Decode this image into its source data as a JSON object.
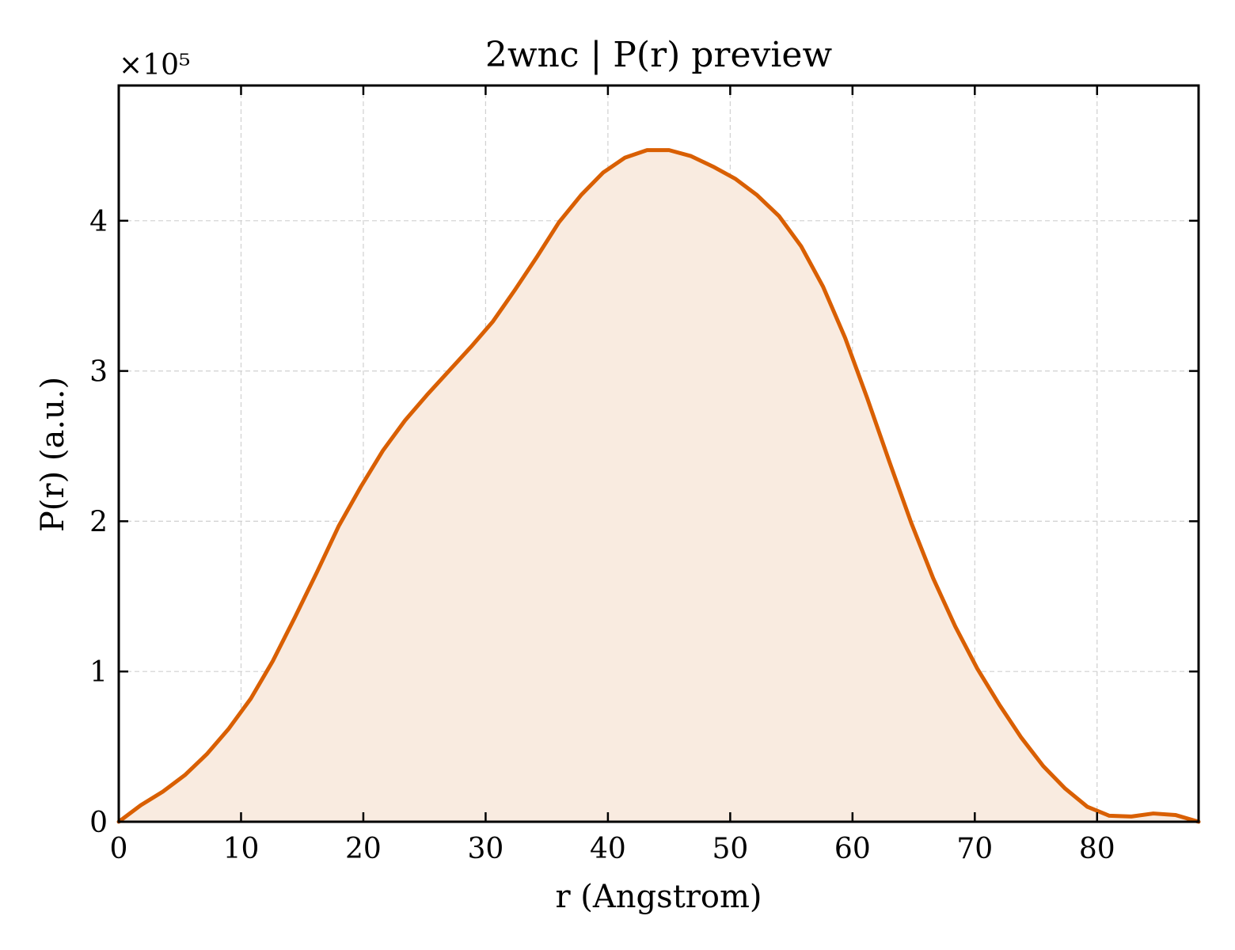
{
  "chart_data": {
    "type": "area",
    "title": "2wnc | P(r) preview",
    "xlabel": "r (Angstrom)",
    "ylabel": "P(r) (a.u.)",
    "y_offset_label": "×10⁵",
    "xlim": [
      0,
      88.3
    ],
    "ylim": [
      0,
      4.9
    ],
    "xticks": [
      0,
      10,
      20,
      30,
      40,
      50,
      60,
      70,
      80
    ],
    "yticks": [
      0,
      1,
      2,
      3,
      4
    ],
    "grid": true,
    "line_color": "#d95f02",
    "fill_color": "#f9ebe0",
    "series": [
      {
        "x": [
          0,
          1.8,
          3.6,
          5.4,
          7.2,
          9.0,
          10.8,
          12.6,
          14.4,
          16.2,
          18.0,
          19.8,
          21.6,
          23.4,
          25.2,
          27.0,
          28.8,
          30.6,
          32.4,
          34.2,
          36.0,
          37.8,
          39.6,
          41.4,
          43.2,
          45.0,
          46.8,
          48.6,
          50.4,
          52.2,
          54.0,
          55.8,
          57.6,
          59.4,
          61.2,
          63.0,
          64.8,
          66.6,
          68.4,
          70.2,
          72.0,
          73.8,
          75.6,
          77.4,
          79.2,
          81.0,
          82.8,
          84.6,
          86.4,
          88.3
        ],
        "y": [
          0,
          0.11,
          0.2,
          0.31,
          0.45,
          0.62,
          0.82,
          1.07,
          1.36,
          1.66,
          1.97,
          2.23,
          2.47,
          2.67,
          2.84,
          3.0,
          3.16,
          3.33,
          3.54,
          3.76,
          3.99,
          4.17,
          4.32,
          4.42,
          4.47,
          4.47,
          4.43,
          4.36,
          4.28,
          4.17,
          4.03,
          3.83,
          3.56,
          3.22,
          2.82,
          2.4,
          1.99,
          1.62,
          1.3,
          1.02,
          0.78,
          0.56,
          0.37,
          0.22,
          0.1,
          0.04,
          0.035,
          0.055,
          0.045,
          0
        ]
      }
    ]
  }
}
